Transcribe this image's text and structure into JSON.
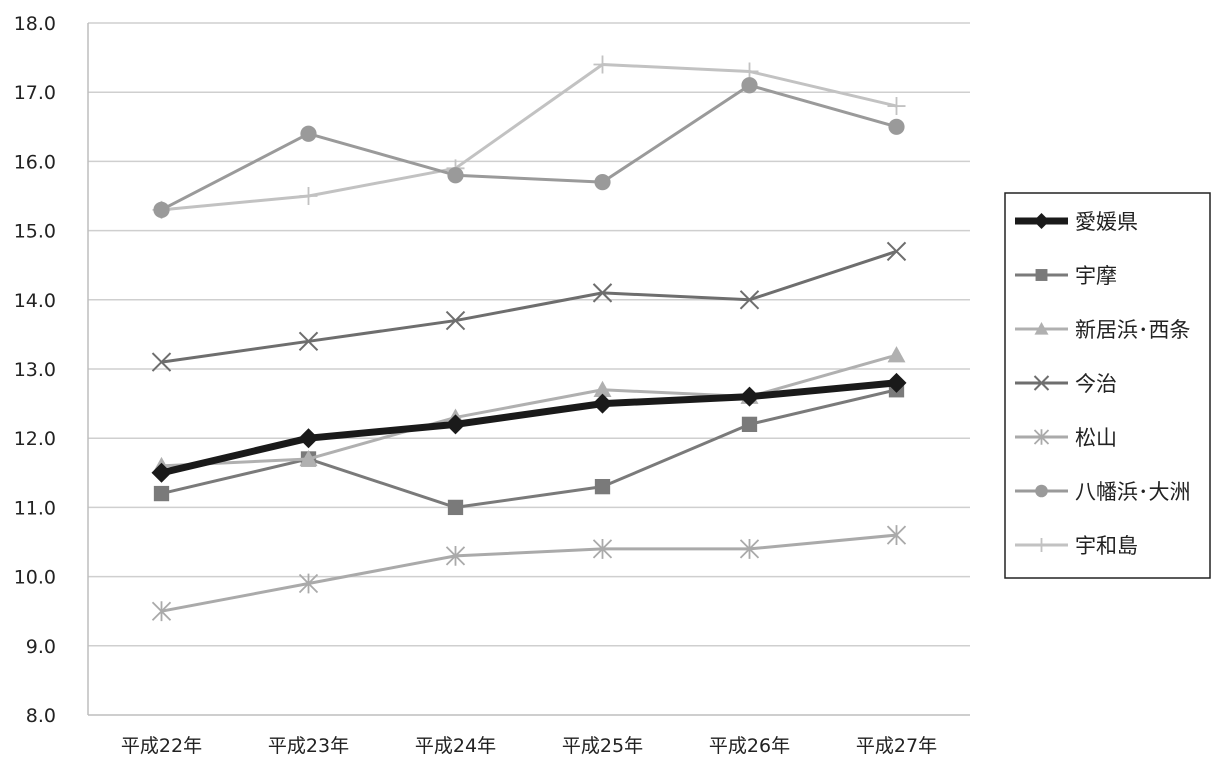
{
  "chart_data": {
    "type": "line",
    "title": "",
    "xlabel": "",
    "ylabel": "",
    "categories": [
      "平成22年",
      "平成23年",
      "平成24年",
      "平成25年",
      "平成26年",
      "平成27年"
    ],
    "ylim": [
      8.0,
      18.0
    ],
    "yticks": [
      "8.0",
      "9.0",
      "10.0",
      "11.0",
      "12.0",
      "13.0",
      "14.0",
      "15.0",
      "16.0",
      "17.0",
      "18.0"
    ],
    "grid": "horizontal",
    "legend_position": "right",
    "series": [
      {
        "name": "愛媛県",
        "values": [
          11.5,
          12.0,
          12.2,
          12.5,
          12.6,
          12.8
        ],
        "color": "#1a1a1a",
        "marker": "diamond"
      },
      {
        "name": "宇摩",
        "values": [
          11.2,
          11.7,
          11.0,
          11.3,
          12.2,
          12.7
        ],
        "color": "#7a7a7a",
        "marker": "square"
      },
      {
        "name": "新居浜･西条",
        "values": [
          11.6,
          11.7,
          12.3,
          12.7,
          12.6,
          13.2
        ],
        "color": "#b0b0b0",
        "marker": "triangle"
      },
      {
        "name": "今治",
        "values": [
          13.1,
          13.4,
          13.7,
          14.1,
          14.0,
          14.7
        ],
        "color": "#6e6e6e",
        "marker": "x"
      },
      {
        "name": "松山",
        "values": [
          9.5,
          9.9,
          10.3,
          10.4,
          10.4,
          10.6
        ],
        "color": "#aaaaaa",
        "marker": "star"
      },
      {
        "name": "八幡浜･大洲",
        "values": [
          15.3,
          16.4,
          15.8,
          15.7,
          17.1,
          16.5
        ],
        "color": "#9a9a9a",
        "marker": "circle"
      },
      {
        "name": "宇和島",
        "values": [
          15.3,
          15.5,
          15.9,
          17.4,
          17.3,
          16.8
        ],
        "color": "#c2c2c2",
        "marker": "plus"
      }
    ]
  }
}
